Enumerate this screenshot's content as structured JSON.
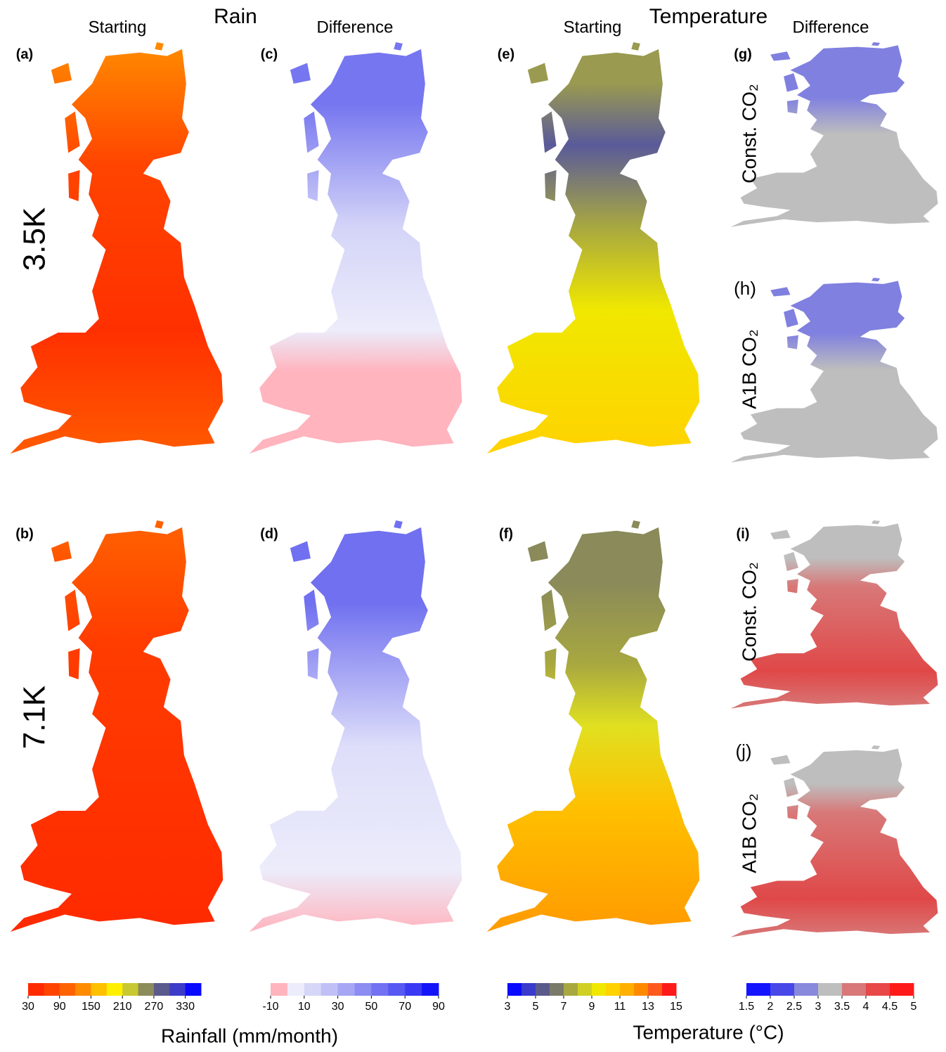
{
  "headers": {
    "rain": "Rain",
    "temperature": "Temperature",
    "rain_starting": "Starting",
    "rain_difference": "Difference",
    "temp_starting": "Starting",
    "temp_difference": "Difference"
  },
  "rows": [
    "3.5K",
    "7.1K"
  ],
  "panels": [
    "(a)",
    "(b)",
    "(c)",
    "(d)",
    "(e)",
    "(f)",
    "(g)",
    "(h)",
    "(i)",
    "(j)"
  ],
  "co2_labels": [
    "Const. CO₂",
    "A1B CO₂",
    "Const. CO₂",
    "A1B CO₂"
  ],
  "colorbars": [
    {
      "title": "Rainfall (mm/month)",
      "lim": [
        30,
        360
      ],
      "ticks": [
        30,
        90,
        150,
        210,
        270,
        330
      ],
      "colors": [
        "#ff2a00",
        "#ff4400",
        "#ff6200",
        "#ff8c00",
        "#ffc000",
        "#fff000",
        "#c8c832",
        "#8c8c5a",
        "#5a5a8c",
        "#3c3cc8",
        "#0a0aff"
      ]
    },
    {
      "lim": [
        -10,
        90
      ],
      "ticks": [
        -10,
        10,
        30,
        50,
        70,
        90
      ],
      "colors": [
        "#ffb4be",
        "#ececfb",
        "#d6d6f8",
        "#c0c0f6",
        "#a6a6f4",
        "#8c8cf2",
        "#7272f2",
        "#5858f2",
        "#3a3af4",
        "#1414f8"
      ]
    },
    {
      "title": "Temperature (°C)",
      "lim": [
        3,
        15
      ],
      "ticks": [
        3,
        5,
        7,
        9,
        11,
        13,
        15
      ],
      "colors": [
        "#0a0aff",
        "#3a3acc",
        "#5a5a8a",
        "#7a7a6a",
        "#a8a840",
        "#d0d024",
        "#f0e800",
        "#ffd200",
        "#ffb000",
        "#ff8a00",
        "#ff5a1e",
        "#ff1a1a"
      ]
    },
    {
      "lim": [
        1.5,
        5
      ],
      "ticks": [
        1.5,
        2,
        2.5,
        3,
        3.5,
        4,
        4.5,
        5
      ],
      "colors": [
        "#1414ff",
        "#4848e8",
        "#8888dd",
        "#bebebe",
        "#d87878",
        "#e84848",
        "#ff1a1a"
      ]
    }
  ]
}
